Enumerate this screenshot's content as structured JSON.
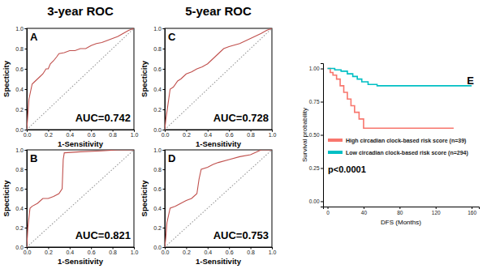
{
  "chart_data": [
    {
      "type": "line",
      "title": "3-year ROC",
      "x_label": "1-Sensitivity",
      "y_label": "Specticity",
      "annotations": [
        "A",
        "AUC=0.742"
      ],
      "xlim": [
        0,
        1
      ],
      "ylim": [
        0,
        1
      ],
      "xticks": [
        {
          "value": 0,
          "label": "0.0"
        },
        {
          "value": 0.2,
          "label": "0.2"
        },
        {
          "value": 0.4,
          "label": "0.4"
        },
        {
          "value": 0.6,
          "label": "0.6"
        },
        {
          "value": 0.8,
          "label": "0.8"
        },
        {
          "value": 1,
          "label": "1.0"
        }
      ],
      "yticks": [
        {
          "value": 0,
          "label": "0.0"
        },
        {
          "value": 0.2,
          "label": "0.2"
        },
        {
          "value": 0.4,
          "label": "0.4"
        },
        {
          "value": 0.6,
          "label": "0.6"
        },
        {
          "value": 0.8,
          "label": "0.8"
        },
        {
          "value": 1,
          "label": "1.0"
        }
      ],
      "series": [
        {
          "color": "#999999",
          "line_style": "dotted",
          "x": [
            0,
            1
          ],
          "values": [
            0,
            1
          ]
        },
        {
          "color": "#c0504d",
          "line_style": "solid",
          "x": [
            0,
            0.01,
            0.02,
            0.03,
            0.05,
            0.07,
            0.1,
            0.12,
            0.15,
            0.18,
            0.2,
            0.22,
            0.25,
            0.28,
            0.3,
            0.35,
            0.4,
            0.45,
            0.5,
            0.55,
            0.6,
            0.65,
            0.7,
            0.75,
            0.8,
            0.85,
            0.9,
            0.95,
            1
          ],
          "values": [
            0,
            0.15,
            0.3,
            0.35,
            0.45,
            0.47,
            0.5,
            0.52,
            0.55,
            0.6,
            0.6,
            0.65,
            0.68,
            0.72,
            0.75,
            0.76,
            0.78,
            0.78,
            0.8,
            0.8,
            0.83,
            0.85,
            0.86,
            0.88,
            0.9,
            0.92,
            0.95,
            0.98,
            1
          ]
        }
      ]
    },
    {
      "type": "line",
      "x_label": "1-Sensitivity",
      "y_label": "Specticity",
      "annotations": [
        "B",
        "AUC=0.821"
      ],
      "xlim": [
        0,
        1
      ],
      "ylim": [
        0,
        1
      ],
      "xticks": [
        {
          "value": 0,
          "label": "0.0"
        },
        {
          "value": 0.2,
          "label": "0.2"
        },
        {
          "value": 0.4,
          "label": "0.4"
        },
        {
          "value": 0.6,
          "label": "0.6"
        },
        {
          "value": 0.8,
          "label": "0.8"
        },
        {
          "value": 1,
          "label": "1.0"
        }
      ],
      "yticks": [
        {
          "value": 0,
          "label": "0.0"
        },
        {
          "value": 0.2,
          "label": "0.2"
        },
        {
          "value": 0.4,
          "label": "0.4"
        },
        {
          "value": 0.6,
          "label": "0.6"
        },
        {
          "value": 0.8,
          "label": "0.8"
        },
        {
          "value": 1,
          "label": "1.0"
        }
      ],
      "series": [
        {
          "color": "#999999",
          "line_style": "dotted",
          "x": [
            0,
            1
          ],
          "values": [
            0,
            1
          ]
        },
        {
          "color": "#c0504d",
          "line_style": "solid",
          "x": [
            0,
            0.01,
            0.03,
            0.05,
            0.1,
            0.15,
            0.2,
            0.25,
            0.3,
            0.33,
            0.34,
            0.35,
            0.5,
            0.7,
            0.85,
            1
          ],
          "values": [
            0,
            0.2,
            0.4,
            0.42,
            0.45,
            0.5,
            0.5,
            0.52,
            0.55,
            0.6,
            0.9,
            0.97,
            0.98,
            0.99,
            1,
            1
          ]
        }
      ]
    },
    {
      "type": "line",
      "title": "5-year ROC",
      "x_label": "1-Sensitivity",
      "y_label": "Specticity",
      "annotations": [
        "C",
        "AUC=0.728"
      ],
      "xlim": [
        0,
        1
      ],
      "ylim": [
        0,
        1
      ],
      "xticks": [
        {
          "value": 0,
          "label": "0.0"
        },
        {
          "value": 0.2,
          "label": "0.2"
        },
        {
          "value": 0.4,
          "label": "0.4"
        },
        {
          "value": 0.6,
          "label": "0.6"
        },
        {
          "value": 0.8,
          "label": "0.8"
        },
        {
          "value": 1,
          "label": "1.0"
        }
      ],
      "yticks": [
        {
          "value": 0,
          "label": "0.0"
        },
        {
          "value": 0.2,
          "label": "0.2"
        },
        {
          "value": 0.4,
          "label": "0.4"
        },
        {
          "value": 0.6,
          "label": "0.6"
        },
        {
          "value": 0.8,
          "label": "0.8"
        },
        {
          "value": 1,
          "label": "1.0"
        }
      ],
      "series": [
        {
          "color": "#999999",
          "line_style": "dotted",
          "x": [
            0,
            1
          ],
          "values": [
            0,
            1
          ]
        },
        {
          "color": "#c0504d",
          "line_style": "solid",
          "x": [
            0,
            0.01,
            0.03,
            0.05,
            0.08,
            0.12,
            0.15,
            0.2,
            0.25,
            0.3,
            0.35,
            0.4,
            0.45,
            0.5,
            0.55,
            0.6,
            0.7,
            0.8,
            0.9,
            0.95,
            1
          ],
          "values": [
            0,
            0.1,
            0.25,
            0.4,
            0.42,
            0.48,
            0.5,
            0.55,
            0.57,
            0.6,
            0.62,
            0.65,
            0.7,
            0.75,
            0.8,
            0.82,
            0.85,
            0.9,
            0.95,
            0.98,
            1
          ]
        }
      ]
    },
    {
      "type": "line",
      "x_label": "1-Sensitivity",
      "y_label": "Specticity",
      "annotations": [
        "D",
        "AUC=0.753"
      ],
      "xlim": [
        0,
        1
      ],
      "ylim": [
        0,
        1
      ],
      "xticks": [
        {
          "value": 0,
          "label": "0.0"
        },
        {
          "value": 0.2,
          "label": "0.2"
        },
        {
          "value": 0.4,
          "label": "0.4"
        },
        {
          "value": 0.6,
          "label": "0.6"
        },
        {
          "value": 0.8,
          "label": "0.8"
        },
        {
          "value": 1,
          "label": "1.0"
        }
      ],
      "yticks": [
        {
          "value": 0,
          "label": "0.0"
        },
        {
          "value": 0.2,
          "label": "0.2"
        },
        {
          "value": 0.4,
          "label": "0.4"
        },
        {
          "value": 0.6,
          "label": "0.6"
        },
        {
          "value": 0.8,
          "label": "0.8"
        },
        {
          "value": 1,
          "label": "1.0"
        }
      ],
      "series": [
        {
          "color": "#999999",
          "line_style": "dotted",
          "x": [
            0,
            1
          ],
          "values": [
            0,
            1
          ]
        },
        {
          "color": "#c0504d",
          "line_style": "solid",
          "x": [
            0,
            0.01,
            0.02,
            0.05,
            0.1,
            0.15,
            0.2,
            0.25,
            0.3,
            0.32,
            0.34,
            0.4,
            0.45,
            0.5,
            0.6,
            0.7,
            0.8,
            0.9,
            1
          ],
          "values": [
            0,
            0.1,
            0.25,
            0.4,
            0.42,
            0.45,
            0.48,
            0.5,
            0.55,
            0.7,
            0.8,
            0.82,
            0.85,
            0.87,
            0.9,
            0.93,
            0.95,
            1,
            1
          ]
        }
      ]
    },
    {
      "type": "step",
      "x_label": "DFS (Months)",
      "y_label": "Survival probability",
      "annotations": [
        "E",
        "p<0.0001"
      ],
      "legend": "lower left",
      "xlim": [
        -5,
        168
      ],
      "ylim": [
        -0.04,
        1.04
      ],
      "xticks": [
        0,
        40,
        80,
        120,
        160
      ],
      "yticks": [
        {
          "value": 0,
          "label": "0.00"
        },
        {
          "value": 0.25,
          "label": "0.25"
        },
        {
          "value": 0.5,
          "label": "0.50"
        },
        {
          "value": 0.75,
          "label": "0.75"
        },
        {
          "value": 1,
          "label": "1.00"
        }
      ],
      "series": [
        {
          "name": "High circadian clock-based risk score (n=39)",
          "color": "#f8766d",
          "line_style": "solid",
          "x": [
            0,
            3,
            6,
            10,
            14,
            18,
            22,
            26,
            30,
            35,
            40,
            140
          ],
          "values": [
            1,
            0.97,
            0.95,
            0.92,
            0.87,
            0.82,
            0.77,
            0.72,
            0.67,
            0.62,
            0.55,
            0.55
          ]
        },
        {
          "name": "Low circadian clock-based risk score (n=294)",
          "color": "#00bfc4",
          "line_style": "solid",
          "x": [
            0,
            8,
            15,
            22,
            28,
            33,
            38,
            45,
            55,
            160
          ],
          "values": [
            1,
            0.99,
            0.98,
            0.96,
            0.94,
            0.92,
            0.9,
            0.88,
            0.87,
            0.87
          ]
        }
      ]
    }
  ]
}
